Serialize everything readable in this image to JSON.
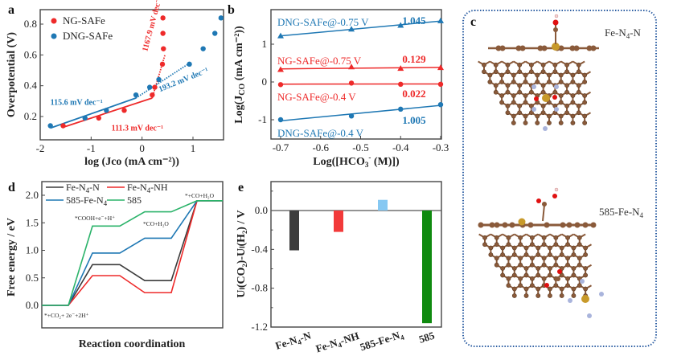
{
  "colors": {
    "red": "#ee2a2a",
    "blue": "#1f78b4",
    "black": "#3b3b3b",
    "green": "#2bb36a",
    "bar_black": "#3d3d3d",
    "bar_red": "#f23a3a",
    "bar_lightblue": "#86c8f2",
    "bar_green": "#0f8a0f",
    "dotted_border": "#2e5fa3",
    "carbon": "#8a5a3a",
    "nitrogen": "#a9b4dc",
    "iron": "#c89a2a",
    "oxygen": "#e01010",
    "hydrogen": "#f4d4d4"
  },
  "panel_c": {
    "label": "c",
    "structure1_label": "Fe-N",
    "structure1_sub": "4",
    "structure1_suffix": "-N",
    "structure2_label": "585-Fe-N",
    "structure2_sub": "4"
  },
  "chart_data": [
    {
      "panel": "a",
      "type": "scatter",
      "title": "",
      "xlabel": "log (Jco (mA cm⁻²))",
      "ylabel": "Overpotential (V)",
      "xlim": [
        -2,
        1.6
      ],
      "ylim": [
        0.08,
        0.9
      ],
      "xticks": [
        -2,
        -1,
        0,
        1
      ],
      "yticks": [
        0.2,
        0.4,
        0.6,
        0.8
      ],
      "xtick_labels": [
        "-2",
        "-1",
        "0",
        "1"
      ],
      "ytick_labels": [
        "0.2",
        "0.4",
        "0.6",
        "0.8"
      ],
      "legend": "top-left",
      "series": [
        {
          "name": "NG-SAFe",
          "color": "#ee2a2a",
          "points": [
            [
              -1.55,
              0.14
            ],
            [
              -0.85,
              0.19
            ],
            [
              -0.35,
              0.24
            ],
            [
              0.2,
              0.34
            ],
            [
              0.25,
              0.39
            ],
            [
              0.4,
              0.54
            ],
            [
              0.42,
              0.64
            ],
            [
              0.41,
              0.74
            ],
            [
              0.41,
              0.84
            ]
          ],
          "fit_solid": [
            [
              -1.55,
              0.13
            ],
            [
              0.2,
              0.32
            ]
          ],
          "fit_dotted": [
            [
              0.2,
              0.32
            ],
            [
              0.45,
              0.6
            ]
          ],
          "annotations": [
            {
              "text": "111.3 mV dec⁻¹",
              "x": -0.6,
              "y": 0.11
            },
            {
              "text": "1167.9 mV dec⁻¹",
              "x": 0.1,
              "y": 0.62,
              "rotate": -75
            }
          ]
        },
        {
          "name": "DNG-SAFe",
          "color": "#1f78b4",
          "points": [
            [
              -1.8,
              0.14
            ],
            [
              -1.12,
              0.19
            ],
            [
              -0.7,
              0.24
            ],
            [
              -0.12,
              0.34
            ],
            [
              0.15,
              0.39
            ],
            [
              0.33,
              0.44
            ],
            [
              0.93,
              0.54
            ],
            [
              1.2,
              0.64
            ],
            [
              1.43,
              0.74
            ],
            [
              1.55,
              0.84
            ]
          ],
          "fit_solid": [
            [
              -1.8,
              0.125
            ],
            [
              -0.12,
              0.32
            ]
          ],
          "fit_dotted": [
            [
              -0.12,
              0.32
            ],
            [
              0.95,
              0.55
            ]
          ],
          "annotations": [
            {
              "text": "115.6 mV dec⁻¹",
              "x": -1.8,
              "y": 0.275
            },
            {
              "text": "193.2 mV dec⁻¹",
              "x": 0.35,
              "y": 0.36,
              "rotate": -22
            }
          ]
        }
      ]
    },
    {
      "panel": "b",
      "type": "line",
      "xlabel": "Log([HCO₃⁻ (M)])",
      "ylabel": "Log(Jₑₒ (mA cm⁻²))",
      "ylabel_main": "Log(J",
      "ylabel_sub": "CO",
      "ylabel_tail": " (mA cm⁻²))",
      "xlim": [
        -0.72,
        -0.28
      ],
      "ylim": [
        -1.5,
        1.9
      ],
      "xticks": [
        -0.7,
        -0.6,
        -0.5,
        -0.4,
        -0.3
      ],
      "xtick_labels": [
        "-0.7",
        "-0.6",
        "-0.5",
        "-0.4",
        "-0.3"
      ],
      "yticks": [
        -1,
        0,
        1
      ],
      "ytick_labels": [
        "-1",
        "0",
        "1"
      ],
      "x": [
        -0.7,
        -0.523,
        -0.4,
        -0.3
      ],
      "series": [
        {
          "name": "DNG-SAFe@-0.75 V",
          "color": "#1f78b4",
          "marker": "triangle",
          "values": [
            1.22,
            1.4,
            1.5,
            1.62
          ],
          "slope_label": "1.045"
        },
        {
          "name": "NG-SAFe@-0.75 V",
          "color": "#ee2a2a",
          "marker": "triangle",
          "values": [
            0.33,
            0.4,
            0.36,
            0.38
          ],
          "slope_label": "0.129"
        },
        {
          "name": "NG-SAFe@-0.4 V",
          "color": "#ee2a2a",
          "marker": "circle",
          "values": [
            -0.07,
            -0.03,
            -0.06,
            -0.06
          ],
          "slope_label": "0.022"
        },
        {
          "name": "DNG-SAFe@-0.4 V",
          "color": "#1f78b4",
          "marker": "circle",
          "values": [
            -1.0,
            -0.9,
            -0.72,
            -0.6
          ],
          "slope_label": "1.005"
        }
      ]
    },
    {
      "panel": "d",
      "type": "line",
      "xlabel": "Reaction coordination",
      "ylabel": "Free energy / eV",
      "ylim": [
        -0.55,
        2.25
      ],
      "yticks": [
        0.0,
        0.5,
        1.0,
        1.5,
        2.0
      ],
      "ytick_labels": [
        "0.0",
        "0.5",
        "1.0",
        "1.5",
        "2.0"
      ],
      "legend": "top",
      "steps": [
        "*+CO₂+ 2e⁻+2H⁺",
        "*COOH+e⁻+H⁺",
        "*CO+H₂O",
        "*+CO+H₂O"
      ],
      "series": [
        {
          "name": "Fe-N4-N",
          "label_main": "Fe-N",
          "label_sub": "4",
          "label_tail": "-N",
          "color": "#3b3b3b",
          "values": [
            0.0,
            0.74,
            0.45,
            1.9
          ]
        },
        {
          "name": "Fe-N4-NH",
          "label_main": "Fe-N",
          "label_sub": "4",
          "label_tail": "-NH",
          "color": "#ee2a2a",
          "values": [
            0.0,
            0.54,
            0.23,
            1.9
          ]
        },
        {
          "name": "585-Fe-N4",
          "label_main": "585-Fe-N",
          "label_sub": "4",
          "label_tail": "",
          "color": "#1f78b4",
          "values": [
            0.0,
            0.95,
            1.22,
            1.9
          ]
        },
        {
          "name": "585",
          "label_main": "585",
          "label_sub": "",
          "label_tail": "",
          "color": "#2bb36a",
          "values": [
            0.0,
            1.44,
            1.7,
            1.9
          ]
        }
      ]
    },
    {
      "panel": "e",
      "type": "bar",
      "xlabel": "",
      "ylabel": "Uₗ(CO₂)-Uₗ(H₂) / V",
      "ylim": [
        -1.2,
        0.3
      ],
      "yticks": [
        0.0,
        -0.4,
        -0.8,
        -1.2
      ],
      "ytick_labels": [
        "0.0",
        "-0.4",
        "-0.8",
        "-1.2"
      ],
      "categories": [
        "Fe-N4-N",
        "Fe-N4-NH",
        "585-Fe-N4",
        "585"
      ],
      "category_labels": [
        {
          "main": "Fe-N",
          "sub": "4",
          "tail": "-N"
        },
        {
          "main": "Fe-N",
          "sub": "4",
          "tail": "-NH"
        },
        {
          "main": "585-Fe-N",
          "sub": "4",
          "tail": ""
        },
        {
          "main": "585",
          "sub": "",
          "tail": ""
        }
      ],
      "values": [
        -0.41,
        -0.22,
        0.11,
        -1.16
      ],
      "bar_colors": [
        "#3d3d3d",
        "#f23a3a",
        "#86c8f2",
        "#0f8a0f"
      ]
    }
  ]
}
